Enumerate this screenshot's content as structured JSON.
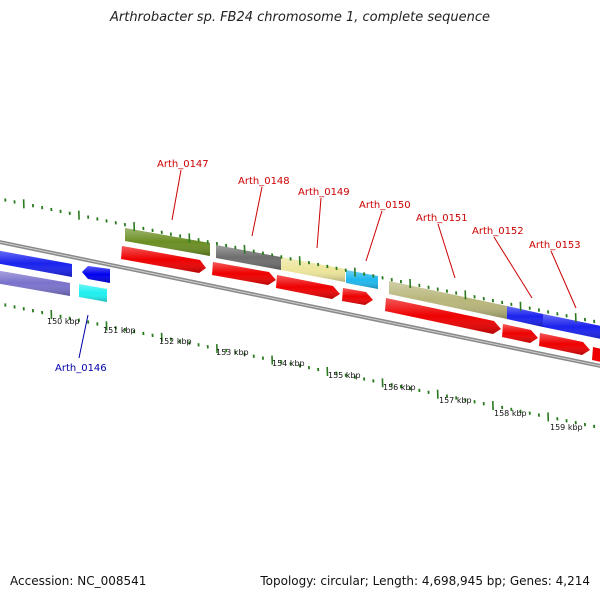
{
  "title": "Arthrobacter sp. FB24 chromosome 1, complete sequence",
  "accession": "Accession: NC_008541",
  "stats": "Topology: circular; Length: 4,698,945 bp; Genes: 4,214",
  "ticks": [
    {
      "kbp": 150,
      "label": "150 kbp"
    },
    {
      "kbp": 151,
      "label": "151 kbp"
    },
    {
      "kbp": 152,
      "label": "152 kbp"
    },
    {
      "kbp": 153,
      "label": "153 kbp"
    },
    {
      "kbp": 154,
      "label": "154 kbp"
    },
    {
      "kbp": 155,
      "label": "155 kbp"
    },
    {
      "kbp": 156,
      "label": "156 kbp"
    },
    {
      "kbp": 157,
      "label": "157 kbp"
    },
    {
      "kbp": 158,
      "label": "158 kbp"
    },
    {
      "kbp": 159,
      "label": "159 kbp"
    }
  ],
  "genes": [
    {
      "name": "Arth_0146",
      "labeled": true,
      "strand": "-",
      "color": "#0000ee"
    },
    {
      "name": "Arth_0147",
      "labeled": true,
      "strand": "+",
      "color": "#ee0000"
    },
    {
      "name": "Arth_0148",
      "labeled": true,
      "strand": "+",
      "color": "#ee0000"
    },
    {
      "name": "Arth_0149",
      "labeled": true,
      "strand": "+",
      "color": "#ee0000"
    },
    {
      "name": "Arth_0150",
      "labeled": true,
      "strand": "+",
      "color": "#ee0000"
    },
    {
      "name": "Arth_0151",
      "labeled": true,
      "strand": "+",
      "color": "#ee0000"
    },
    {
      "name": "Arth_0152",
      "labeled": true,
      "strand": "+",
      "color": "#ee0000"
    },
    {
      "name": "Arth_0153",
      "labeled": true,
      "strand": "+",
      "color": "#ee0000"
    }
  ],
  "colors": {
    "forward_gene": "#ee0000",
    "reverse_gene": "#0000ee",
    "label_forward": "#cc0000",
    "label_reverse": "#0000aa",
    "backbone": "#808080",
    "tick": "#2a7a1f",
    "cog_olive": "#6b8e23",
    "cog_gray": "#6e6e6e",
    "cog_pale": "#ede59a",
    "cog_cyan": "#1fb8ee",
    "cog_khaki": "#b8b67a",
    "cog_blue": "#1a22ee",
    "cog_lavender": "#7a72cc",
    "cog_aqua": "#1ff0f0"
  }
}
